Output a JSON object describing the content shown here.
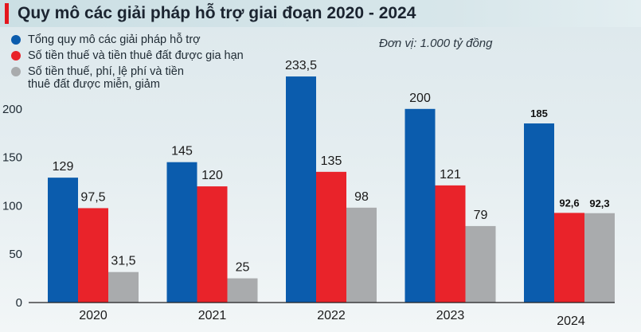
{
  "title": "Quy mô các giải pháp hỗ trợ giai đoạn 2020 - 2024",
  "unit_note": "Đơn vị: 1.000 tỷ đồng",
  "colors": {
    "accent": "#e3161d",
    "series": [
      "#0b5cad",
      "#e9232a",
      "#a9abad"
    ]
  },
  "legend": [
    {
      "label": "Tổng quy mô các giải pháp hỗ trợ"
    },
    {
      "label": "Số tiền thuế và tiền thuê đất được gia hạn"
    },
    {
      "label": "Số tiền thuế, phí, lệ phí và tiền thuê đất được miễn, giảm"
    }
  ],
  "chart_data": {
    "type": "bar",
    "title": "Quy mô các giải pháp hỗ trợ giai đoạn 2020 - 2024",
    "xlabel": "",
    "ylabel": "Đơn vị: 1.000 tỷ đồng",
    "categories": [
      "2020",
      "2021",
      "2022",
      "2023",
      "2024"
    ],
    "series": [
      {
        "name": "Tổng quy mô các giải pháp hỗ trợ",
        "values": [
          129,
          145,
          233.5,
          200,
          185
        ],
        "labels": [
          "129",
          "145",
          "233,5",
          "200",
          "185"
        ]
      },
      {
        "name": "Số tiền thuế và tiền thuê đất được gia hạn",
        "values": [
          97.5,
          120,
          135,
          121,
          92.6
        ],
        "labels": [
          "97,5",
          "120",
          "135",
          "121",
          "92,6"
        ]
      },
      {
        "name": "Số tiền thuế, phí, lệ phí và tiền thuê đất được miễn, giảm",
        "values": [
          31.5,
          25,
          98,
          79,
          92.3
        ],
        "labels": [
          "31,5",
          "25",
          "98",
          "79",
          "92,3"
        ]
      }
    ],
    "yticks": [
      0,
      50,
      100,
      150,
      200
    ],
    "ylim": [
      0,
      250
    ],
    "grid": false,
    "legend_position": "top-left"
  }
}
